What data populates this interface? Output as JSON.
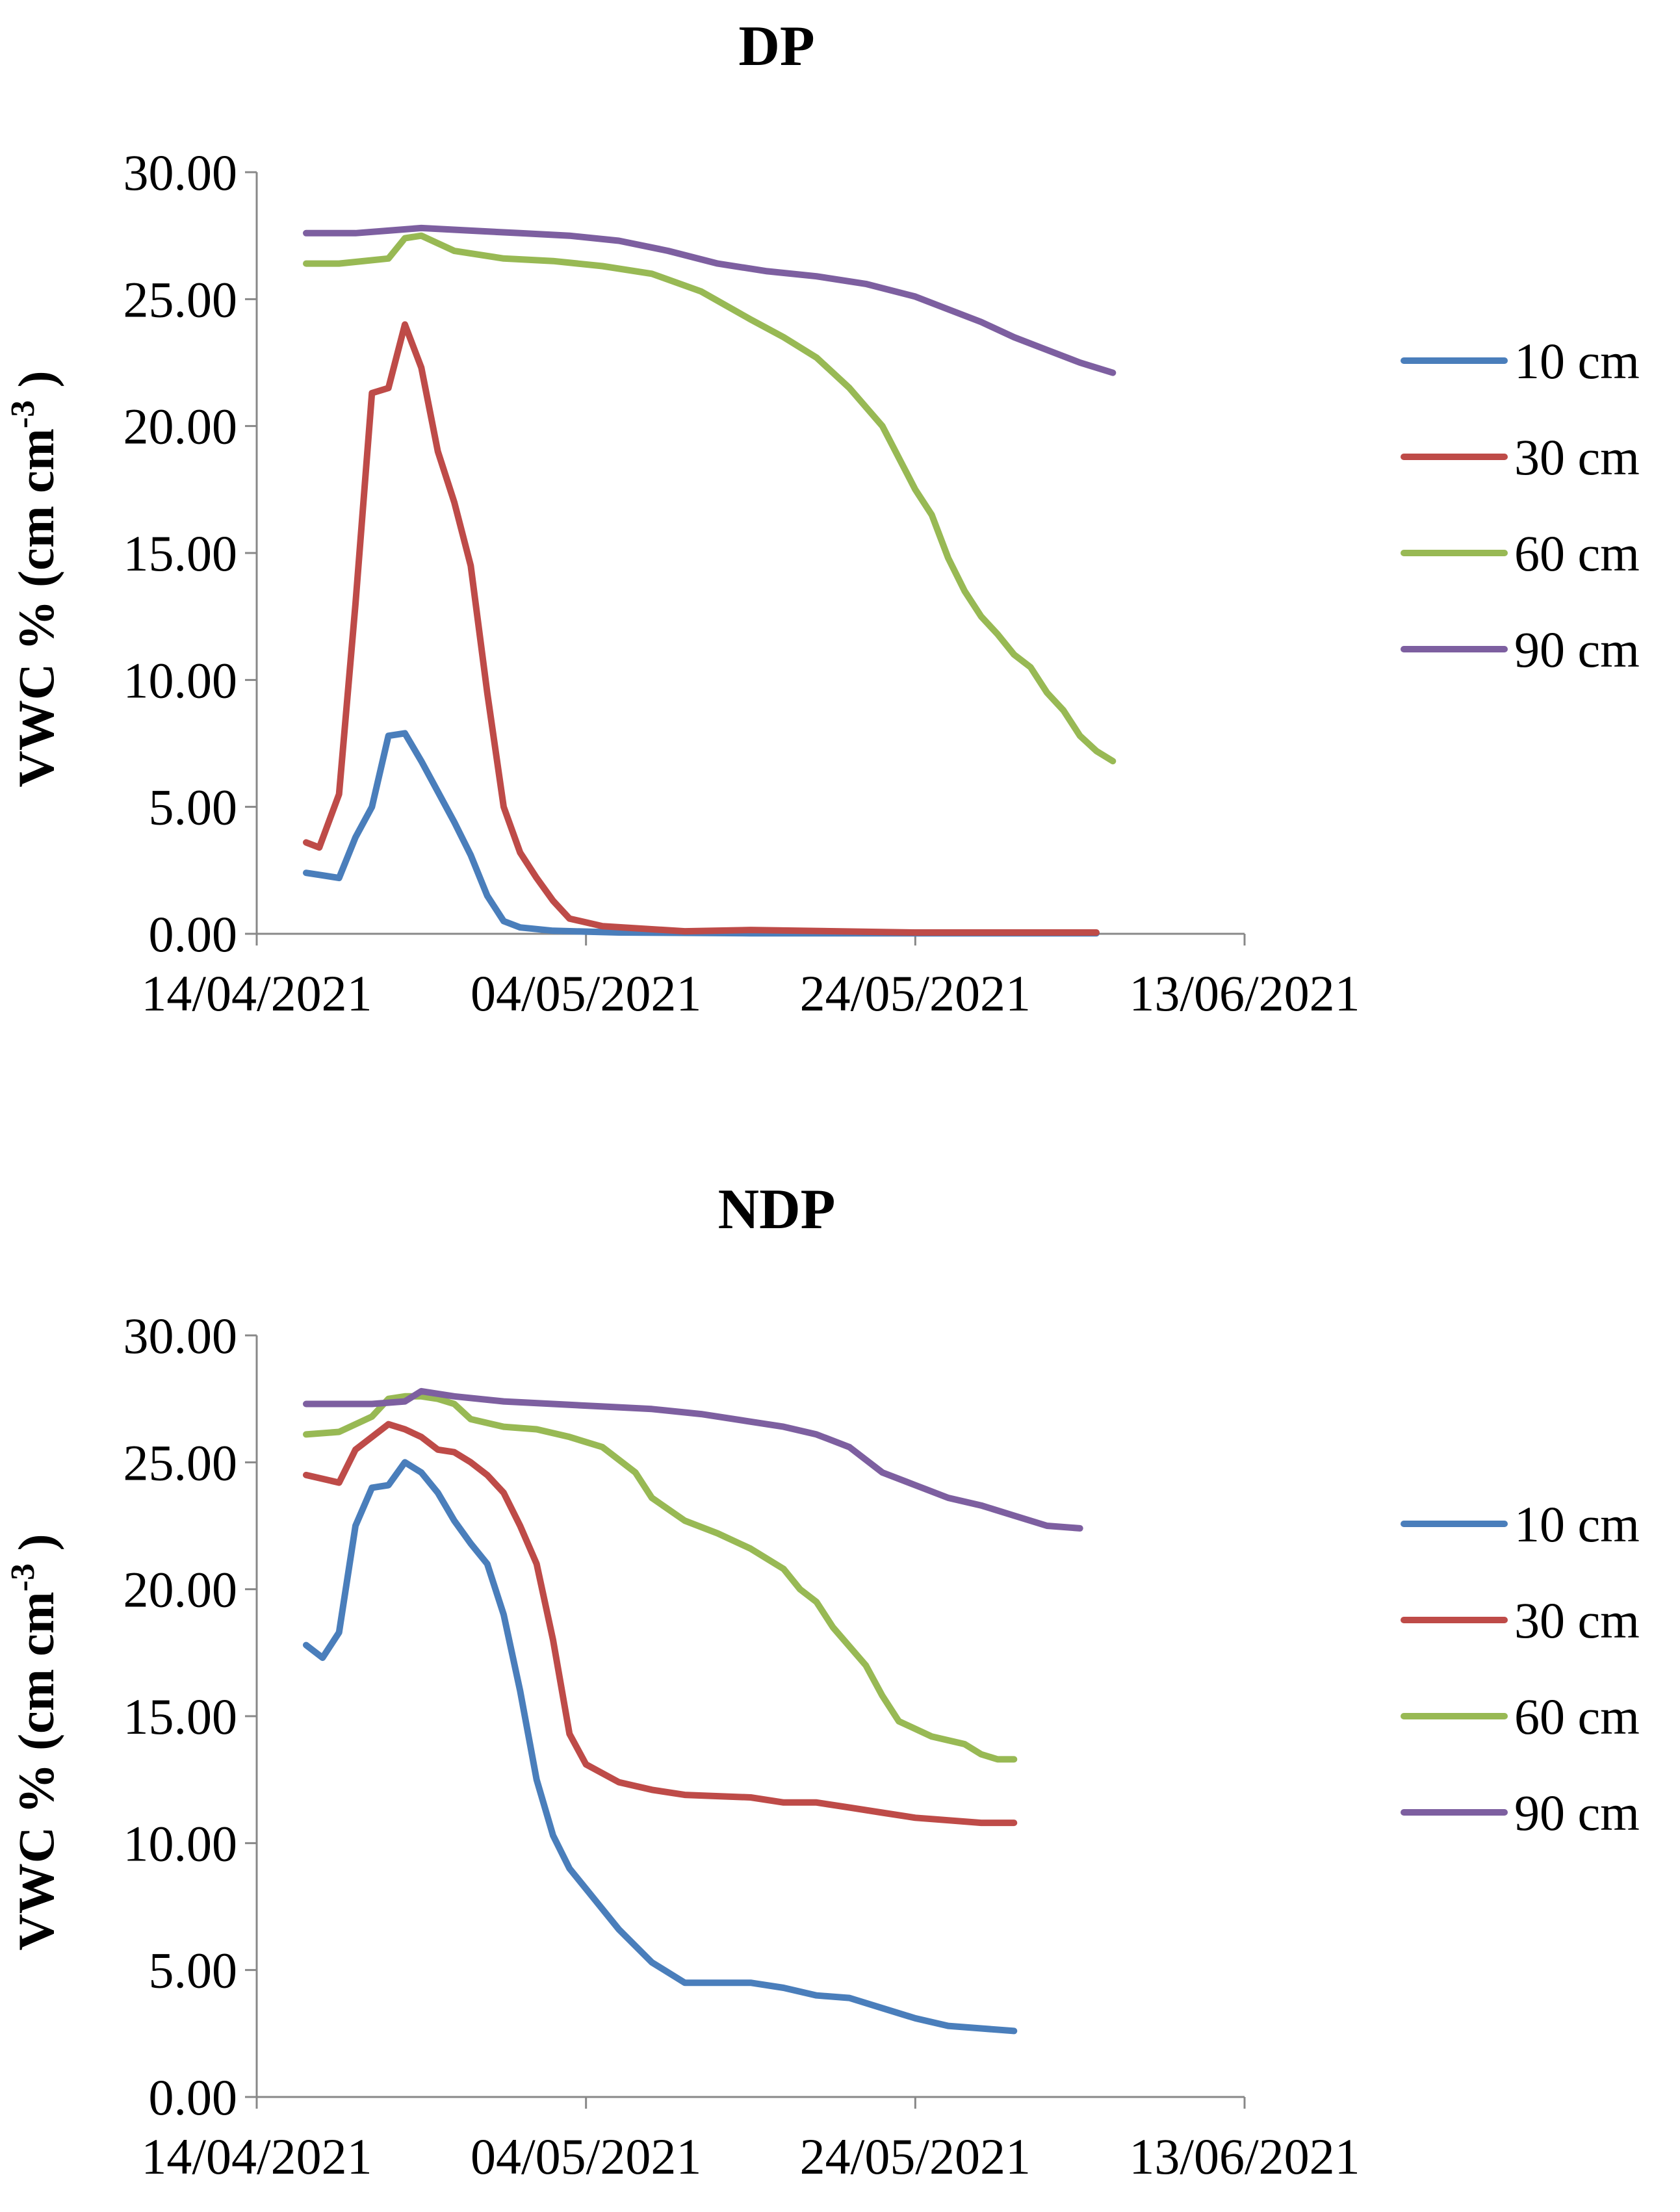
{
  "chart_data": [
    {
      "type": "line",
      "title": "DP",
      "ylabel_main": "VWC % (cm cm",
      "ylabel_sup": "-3",
      "ylabel_end": " )",
      "xlabel": "",
      "ylim": [
        0,
        30
      ],
      "yticks": [
        "0.00",
        "5.00",
        "10.00",
        "15.00",
        "20.00",
        "25.00",
        "30.00"
      ],
      "xlim_days": [
        0,
        60
      ],
      "xticks": [
        {
          "day": 0,
          "label": "14/04/2021"
        },
        {
          "day": 20,
          "label": "04/05/2021"
        },
        {
          "day": 40,
          "label": "24/05/2021"
        },
        {
          "day": 60,
          "label": "13/06/2021"
        }
      ],
      "series": [
        {
          "name": "10 cm",
          "color": "#4a7ebb",
          "points": [
            [
              3,
              2.4
            ],
            [
              4,
              2.3
            ],
            [
              5,
              2.2
            ],
            [
              6,
              3.8
            ],
            [
              7,
              5
            ],
            [
              8,
              7.8
            ],
            [
              9,
              7.9
            ],
            [
              10,
              6.8
            ],
            [
              11,
              5.6
            ],
            [
              12,
              4.4
            ],
            [
              13,
              3.1
            ],
            [
              14,
              1.5
            ],
            [
              15,
              0.5
            ],
            [
              16,
              0.25
            ],
            [
              18,
              0.12
            ],
            [
              22,
              0.05
            ],
            [
              30,
              0.02
            ],
            [
              51,
              0.02
            ]
          ]
        },
        {
          "name": "30 cm",
          "color": "#be4b48",
          "points": [
            [
              3,
              3.6
            ],
            [
              3.8,
              3.4
            ],
            [
              5,
              5.5
            ],
            [
              6,
              13
            ],
            [
              7,
              21.3
            ],
            [
              8,
              21.5
            ],
            [
              9,
              24
            ],
            [
              10,
              22.3
            ],
            [
              11,
              19
            ],
            [
              12,
              17
            ],
            [
              13,
              14.5
            ],
            [
              14,
              9.5
            ],
            [
              15,
              5
            ],
            [
              16,
              3.2
            ],
            [
              17,
              2.2
            ],
            [
              18,
              1.3
            ],
            [
              19,
              0.6
            ],
            [
              21,
              0.3
            ],
            [
              26,
              0.1
            ],
            [
              30,
              0.15
            ],
            [
              40,
              0.05
            ],
            [
              51,
              0.05
            ]
          ]
        },
        {
          "name": "60 cm",
          "color": "#98b954",
          "points": [
            [
              3,
              26.4
            ],
            [
              5,
              26.4
            ],
            [
              8,
              26.6
            ],
            [
              9,
              27.4
            ],
            [
              10,
              27.5
            ],
            [
              11,
              27.2
            ],
            [
              12,
              26.9
            ],
            [
              15,
              26.6
            ],
            [
              18,
              26.5
            ],
            [
              21,
              26.3
            ],
            [
              24,
              26
            ],
            [
              27,
              25.3
            ],
            [
              30,
              24.2
            ],
            [
              32,
              23.5
            ],
            [
              34,
              22.7
            ],
            [
              36,
              21.5
            ],
            [
              38,
              20
            ],
            [
              40,
              17.5
            ],
            [
              41,
              16.5
            ],
            [
              42,
              14.8
            ],
            [
              43,
              13.5
            ],
            [
              44,
              12.5
            ],
            [
              45,
              11.8
            ],
            [
              46,
              11
            ],
            [
              47,
              10.5
            ],
            [
              48,
              9.5
            ],
            [
              49,
              8.8
            ],
            [
              50,
              7.8
            ],
            [
              51,
              7.2
            ],
            [
              52,
              6.8
            ]
          ]
        },
        {
          "name": "90 cm",
          "color": "#7d5fa0",
          "points": [
            [
              3,
              27.6
            ],
            [
              6,
              27.6
            ],
            [
              8,
              27.7
            ],
            [
              10,
              27.8
            ],
            [
              13,
              27.7
            ],
            [
              16,
              27.6
            ],
            [
              19,
              27.5
            ],
            [
              22,
              27.3
            ],
            [
              25,
              26.9
            ],
            [
              28,
              26.4
            ],
            [
              31,
              26.1
            ],
            [
              34,
              25.9
            ],
            [
              37,
              25.6
            ],
            [
              40,
              25.1
            ],
            [
              42,
              24.6
            ],
            [
              44,
              24.1
            ],
            [
              46,
              23.5
            ],
            [
              48,
              23
            ],
            [
              50,
              22.5
            ],
            [
              52,
              22.1
            ]
          ]
        }
      ]
    },
    {
      "type": "line",
      "title": "NDP",
      "ylabel_main": "VWC % (cm cm",
      "ylabel_sup": "-3",
      "ylabel_end": " )",
      "xlabel": "",
      "ylim": [
        0,
        30
      ],
      "yticks": [
        "0.00",
        "5.00",
        "10.00",
        "15.00",
        "20.00",
        "25.00",
        "30.00"
      ],
      "xlim_days": [
        0,
        60
      ],
      "xticks": [
        {
          "day": 0,
          "label": "14/04/2021"
        },
        {
          "day": 20,
          "label": "04/05/2021"
        },
        {
          "day": 40,
          "label": "24/05/2021"
        },
        {
          "day": 60,
          "label": "13/06/2021"
        }
      ],
      "series": [
        {
          "name": "10 cm",
          "color": "#4a7ebb",
          "points": [
            [
              3,
              17.8
            ],
            [
              4,
              17.3
            ],
            [
              5,
              18.3
            ],
            [
              6,
              22.5
            ],
            [
              7,
              24
            ],
            [
              8,
              24.1
            ],
            [
              9,
              25
            ],
            [
              10,
              24.6
            ],
            [
              11,
              23.8
            ],
            [
              12,
              22.7
            ],
            [
              13,
              21.8
            ],
            [
              14,
              21
            ],
            [
              15,
              19
            ],
            [
              16,
              16
            ],
            [
              17,
              12.5
            ],
            [
              18,
              10.3
            ],
            [
              19,
              9
            ],
            [
              20,
              8.2
            ],
            [
              22,
              6.6
            ],
            [
              24,
              5.3
            ],
            [
              26,
              4.5
            ],
            [
              27,
              4.5
            ],
            [
              30,
              4.5
            ],
            [
              32,
              4.3
            ],
            [
              34,
              4
            ],
            [
              36,
              3.9
            ],
            [
              38,
              3.5
            ],
            [
              40,
              3.1
            ],
            [
              42,
              2.8
            ],
            [
              44,
              2.7
            ],
            [
              46,
              2.6
            ]
          ]
        },
        {
          "name": "30 cm",
          "color": "#be4b48",
          "points": [
            [
              3,
              24.5
            ],
            [
              5,
              24.2
            ],
            [
              6,
              25.5
            ],
            [
              7,
              26
            ],
            [
              8,
              26.5
            ],
            [
              9,
              26.3
            ],
            [
              10,
              26
            ],
            [
              11,
              25.5
            ],
            [
              12,
              25.4
            ],
            [
              13,
              25
            ],
            [
              14,
              24.5
            ],
            [
              15,
              23.8
            ],
            [
              16,
              22.5
            ],
            [
              17,
              21
            ],
            [
              18,
              18
            ],
            [
              19,
              14.3
            ],
            [
              20,
              13.1
            ],
            [
              22,
              12.4
            ],
            [
              24,
              12.1
            ],
            [
              26,
              11.9
            ],
            [
              30,
              11.8
            ],
            [
              32,
              11.6
            ],
            [
              34,
              11.6
            ],
            [
              36,
              11.4
            ],
            [
              38,
              11.2
            ],
            [
              40,
              11
            ],
            [
              42,
              10.9
            ],
            [
              44,
              10.8
            ],
            [
              46,
              10.8
            ]
          ]
        },
        {
          "name": "60 cm",
          "color": "#98b954",
          "points": [
            [
              3,
              26.1
            ],
            [
              5,
              26.2
            ],
            [
              7,
              26.8
            ],
            [
              8,
              27.5
            ],
            [
              9,
              27.6
            ],
            [
              10,
              27.6
            ],
            [
              11,
              27.5
            ],
            [
              12,
              27.3
            ],
            [
              13,
              26.7
            ],
            [
              15,
              26.4
            ],
            [
              17,
              26.3
            ],
            [
              19,
              26
            ],
            [
              21,
              25.6
            ],
            [
              23,
              24.6
            ],
            [
              24,
              23.6
            ],
            [
              26,
              22.7
            ],
            [
              28,
              22.2
            ],
            [
              30,
              21.6
            ],
            [
              32,
              20.8
            ],
            [
              33,
              20
            ],
            [
              34,
              19.5
            ],
            [
              35,
              18.5
            ],
            [
              37,
              17
            ],
            [
              38,
              15.8
            ],
            [
              39,
              14.8
            ],
            [
              41,
              14.2
            ],
            [
              43,
              13.9
            ],
            [
              44,
              13.5
            ],
            [
              45,
              13.3
            ],
            [
              46,
              13.3
            ]
          ]
        },
        {
          "name": "90 cm",
          "color": "#7d5fa0",
          "points": [
            [
              3,
              27.3
            ],
            [
              7,
              27.3
            ],
            [
              9,
              27.4
            ],
            [
              10,
              27.8
            ],
            [
              12,
              27.6
            ],
            [
              15,
              27.4
            ],
            [
              18,
              27.3
            ],
            [
              21,
              27.2
            ],
            [
              24,
              27.1
            ],
            [
              27,
              26.9
            ],
            [
              30,
              26.6
            ],
            [
              32,
              26.4
            ],
            [
              34,
              26.1
            ],
            [
              36,
              25.6
            ],
            [
              37,
              25.1
            ],
            [
              38,
              24.6
            ],
            [
              40,
              24.1
            ],
            [
              42,
              23.6
            ],
            [
              44,
              23.3
            ],
            [
              46,
              22.9
            ],
            [
              48,
              22.5
            ],
            [
              50,
              22.4
            ]
          ]
        }
      ]
    }
  ]
}
